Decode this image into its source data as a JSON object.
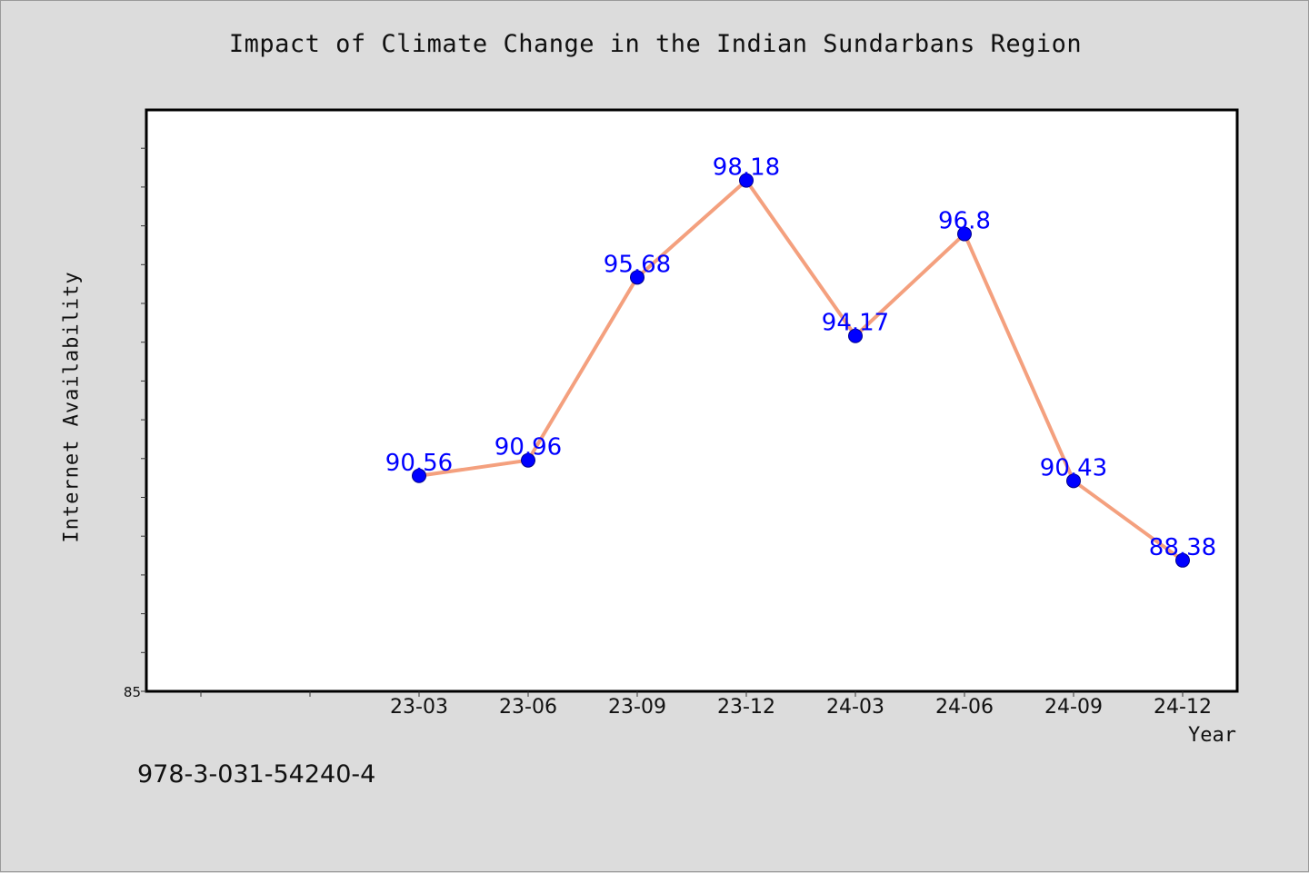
{
  "chart_data": {
    "type": "line",
    "title": "Impact of Climate Change in the Indian Sundarbans Region",
    "xlabel": "Year",
    "ylabel": "Internet Availability",
    "categories": [
      "23-03",
      "23-06",
      "23-09",
      "23-12",
      "24-03",
      "24-06",
      "24-09",
      "24-12"
    ],
    "series": [
      {
        "values": [
          90.56,
          90.96,
          95.68,
          98.18,
          94.17,
          96.8,
          90.43,
          88.38
        ]
      }
    ],
    "data_labels": [
      "90.56",
      "90.96",
      "95.68",
      "98.18",
      "94.17",
      "96.8",
      "90.43",
      "88.38"
    ],
    "y_tick_labels": [
      "85"
    ],
    "ylim": [
      85,
      100
    ],
    "grid": false,
    "legend": "none",
    "colors": {
      "line": "#f4a07e",
      "marker": "#0000ff",
      "label": "#0000ff"
    }
  },
  "footer": {
    "isbn": "978-3-031-54240-4"
  }
}
